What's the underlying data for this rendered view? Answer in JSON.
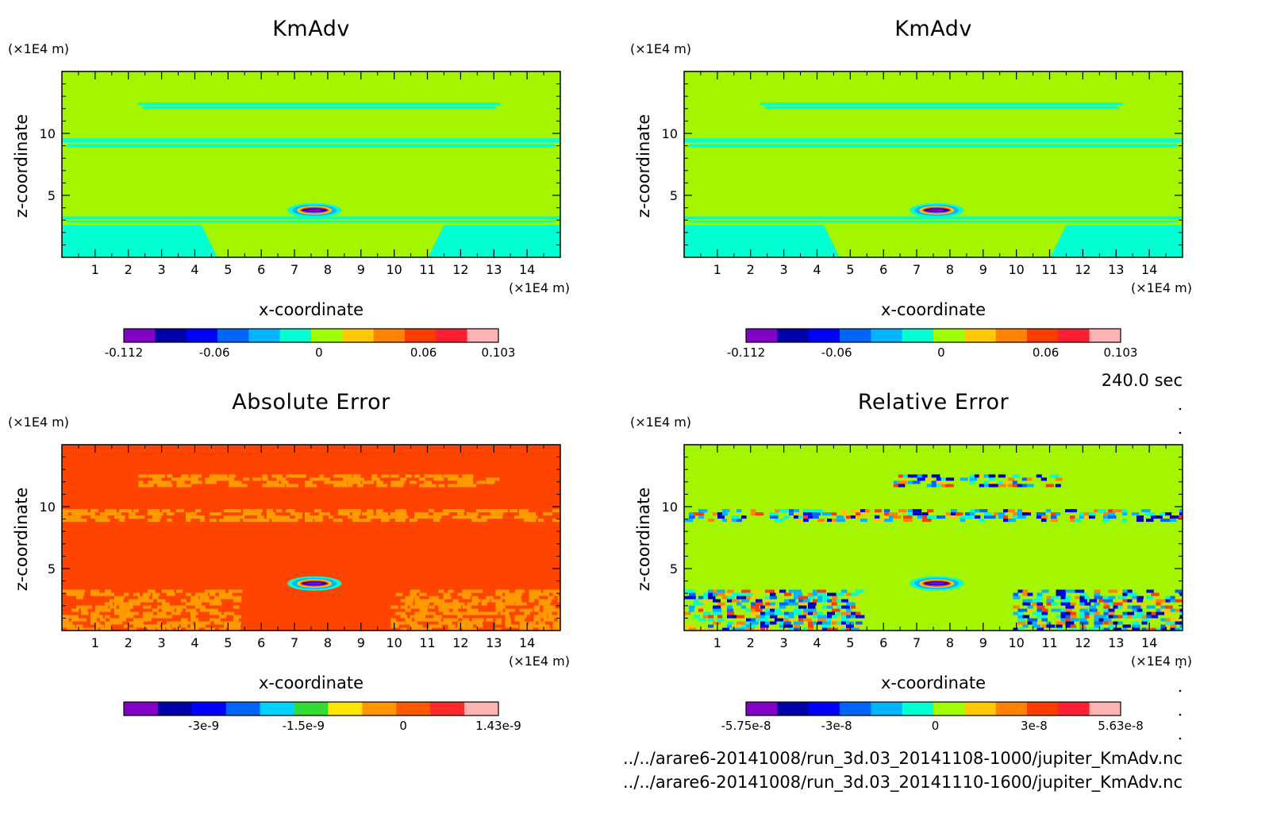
{
  "chart_data": [
    {
      "type": "heatmap",
      "title": "KmAdv",
      "xlabel": "x-coordinate",
      "ylabel": "z-coordinate",
      "x_unit": "(×1E4 m)",
      "y_unit": "(×1E4 m)",
      "xlim": [
        0,
        15
      ],
      "ylim": [
        0,
        15
      ],
      "x_ticks": [
        "1",
        "2",
        "3",
        "4",
        "5",
        "6",
        "7",
        "8",
        "9",
        "10",
        "11",
        "12",
        "13",
        "14"
      ],
      "y_ticks": [
        "5",
        "10"
      ],
      "background_color": "#a3f500",
      "colorbar": {
        "colors": [
          "#8200c8",
          "#0000a8",
          "#0000ff",
          "#0064ff",
          "#00b4ff",
          "#00ffd2",
          "#a0ff00",
          "#ffc800",
          "#ff8200",
          "#ff3c00",
          "#ff1e32",
          "#ffb4b4"
        ],
        "tick_labels": [
          "-0.112",
          "-0.06",
          "0",
          "0.06",
          "0.103"
        ],
        "range": [
          -0.112,
          0.103
        ]
      },
      "features": [
        {
          "kind": "band",
          "z": [
            12.0,
            12.5
          ],
          "x": [
            2.3,
            13.2
          ],
          "color": "#00ffd2"
        },
        {
          "kind": "band",
          "z": [
            8.9,
            9.6
          ],
          "x": [
            0,
            15
          ],
          "color": "#00ffd2"
        },
        {
          "kind": "band",
          "z": [
            2.8,
            3.3
          ],
          "x": [
            0,
            15
          ],
          "color": "#00ffd2"
        },
        {
          "kind": "region",
          "z": [
            0,
            2.6
          ],
          "x": [
            0,
            4.2
          ],
          "color": "#00ffd2"
        },
        {
          "kind": "region",
          "z": [
            0,
            2.6
          ],
          "x": [
            11.5,
            15
          ],
          "color": "#00ffd2"
        },
        {
          "kind": "blob",
          "x": 7.6,
          "z": 3.8,
          "values": [
            -0.112,
            0.103
          ]
        }
      ]
    },
    {
      "type": "heatmap",
      "title": "KmAdv",
      "xlabel": "x-coordinate",
      "ylabel": "z-coordinate",
      "x_unit": "(×1E4 m)",
      "y_unit": "(×1E4 m)",
      "xlim": [
        0,
        15
      ],
      "ylim": [
        0,
        15
      ],
      "x_ticks": [
        "1",
        "2",
        "3",
        "4",
        "5",
        "6",
        "7",
        "8",
        "9",
        "10",
        "11",
        "12",
        "13",
        "14"
      ],
      "y_ticks": [
        "5",
        "10"
      ],
      "background_color": "#a3f500",
      "colorbar": {
        "colors": [
          "#8200c8",
          "#0000a8",
          "#0000ff",
          "#0064ff",
          "#00b4ff",
          "#00ffd2",
          "#a0ff00",
          "#ffc800",
          "#ff8200",
          "#ff3c00",
          "#ff1e32",
          "#ffb4b4"
        ],
        "tick_labels": [
          "-0.112",
          "-0.06",
          "0",
          "0.06",
          "0.103"
        ],
        "range": [
          -0.112,
          0.103
        ]
      },
      "features": [
        {
          "kind": "band",
          "z": [
            12.0,
            12.5
          ],
          "x": [
            2.3,
            13.2
          ],
          "color": "#00ffd2"
        },
        {
          "kind": "band",
          "z": [
            8.9,
            9.6
          ],
          "x": [
            0,
            15
          ],
          "color": "#00ffd2"
        },
        {
          "kind": "band",
          "z": [
            2.8,
            3.3
          ],
          "x": [
            0,
            15
          ],
          "color": "#00ffd2"
        },
        {
          "kind": "region",
          "z": [
            0,
            2.6
          ],
          "x": [
            0,
            4.2
          ],
          "color": "#00ffd2"
        },
        {
          "kind": "region",
          "z": [
            0,
            2.6
          ],
          "x": [
            11.5,
            15
          ],
          "color": "#00ffd2"
        },
        {
          "kind": "blob",
          "x": 7.6,
          "z": 3.8,
          "values": [
            -0.112,
            0.103
          ]
        }
      ]
    },
    {
      "type": "heatmap",
      "title": "Absolute Error",
      "xlabel": "x-coordinate",
      "ylabel": "z-coordinate",
      "x_unit": "(×1E4 m)",
      "y_unit": "(×1E4 m)",
      "xlim": [
        0,
        15
      ],
      "ylim": [
        0,
        15
      ],
      "x_ticks": [
        "1",
        "2",
        "3",
        "4",
        "5",
        "6",
        "7",
        "8",
        "9",
        "10",
        "11",
        "12",
        "13",
        "14"
      ],
      "y_ticks": [
        "5",
        "10"
      ],
      "background_color": "#ff4400",
      "colorbar": {
        "colors": [
          "#8200c8",
          "#0000a8",
          "#0000ff",
          "#0064ff",
          "#00d2ff",
          "#32dc32",
          "#ffe600",
          "#ff9600",
          "#ff5a00",
          "#ff2828",
          "#ffb4b4"
        ],
        "tick_labels": [
          "-3e-9",
          "-1.5e-9",
          "0",
          "1.43e-9"
        ],
        "range": [
          -4.2e-09,
          1.43e-09
        ]
      },
      "features": [
        {
          "kind": "noise-band",
          "z": [
            11.7,
            12.6
          ],
          "x": [
            2.3,
            13.0
          ],
          "color": "#ff9a00"
        },
        {
          "kind": "noise-band",
          "z": [
            8.8,
            9.8
          ],
          "x": [
            0,
            15
          ],
          "color": "#ff9a00"
        },
        {
          "kind": "noise-region",
          "z": [
            0,
            3.3
          ],
          "x": [
            0,
            5.2
          ],
          "color": "#ff9a00"
        },
        {
          "kind": "noise-region",
          "z": [
            0,
            3.3
          ],
          "x": [
            9.9,
            15
          ],
          "color": "#ff9a00"
        },
        {
          "kind": "blob",
          "x": 7.6,
          "z": 3.8
        }
      ]
    },
    {
      "type": "heatmap",
      "title": "Relative Error",
      "xlabel": "x-coordinate",
      "ylabel": "z-coordinate",
      "x_unit": "(×1E4 m)",
      "y_unit": "(×1E4 m)",
      "xlim": [
        0,
        15
      ],
      "ylim": [
        0,
        15
      ],
      "x_ticks": [
        "1",
        "2",
        "3",
        "4",
        "5",
        "6",
        "7",
        "8",
        "9",
        "10",
        "11",
        "12",
        "13",
        "14"
      ],
      "y_ticks": [
        "5",
        "10"
      ],
      "background_color": "#a3f500",
      "colorbar": {
        "colors": [
          "#8200c8",
          "#0000a8",
          "#0000ff",
          "#0064ff",
          "#00b4ff",
          "#00ffd2",
          "#a0ff00",
          "#ffc800",
          "#ff8200",
          "#ff3c00",
          "#ff1e32",
          "#ffb4b4"
        ],
        "tick_labels": [
          "-5.75e-8",
          "-3e-8",
          "0",
          "3e-8",
          "5.63e-8"
        ],
        "range": [
          -5.75e-08,
          5.63e-08
        ]
      },
      "features": [
        {
          "kind": "noise-band",
          "z": [
            11.7,
            12.6
          ],
          "x": [
            6.3,
            11.3
          ],
          "multicolor": true
        },
        {
          "kind": "noise-band",
          "z": [
            8.8,
            9.8
          ],
          "x": [
            0,
            15
          ],
          "multicolor": true
        },
        {
          "kind": "noise-region",
          "z": [
            0,
            3.3
          ],
          "x": [
            0,
            5.2
          ],
          "multicolor": true
        },
        {
          "kind": "noise-region",
          "z": [
            0,
            3.3
          ],
          "x": [
            9.9,
            15
          ],
          "multicolor": true
        },
        {
          "kind": "blob",
          "x": 7.6,
          "z": 3.8
        }
      ]
    }
  ],
  "time_label": "240.0 sec",
  "files": [
    "../../arare6-20141008/run_3d.03_20141108-1000/jupiter_KmAdv.nc",
    "../../arare6-20141008/run_3d.03_20141110-1600/jupiter_KmAdv.nc"
  ]
}
